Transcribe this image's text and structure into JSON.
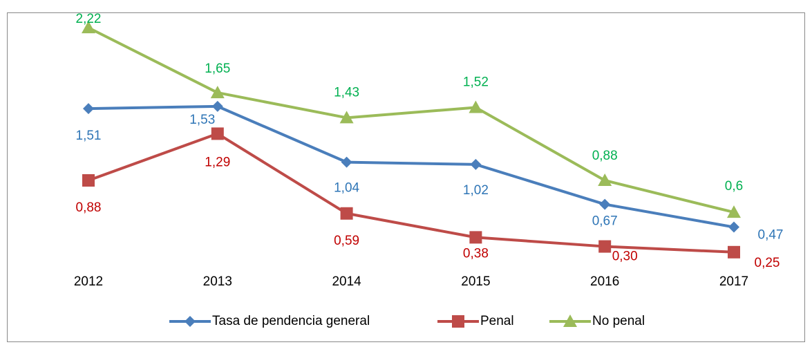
{
  "chart_data": {
    "type": "line",
    "categories": [
      "2012",
      "2013",
      "2014",
      "2015",
      "2016",
      "2017"
    ],
    "ylim": [
      0,
      2.5
    ],
    "legend": "bottom",
    "series": [
      {
        "name": "Tasa de pendencia general",
        "color": "#4a7ebb",
        "label_color": "#2e75b6",
        "marker": "diamond",
        "values": [
          1.51,
          1.53,
          1.04,
          1.02,
          0.67,
          0.47
        ],
        "value_labels": [
          "1,51",
          "1,53",
          "1,04",
          "1,02",
          "0,67",
          "0,47"
        ]
      },
      {
        "name": "Penal",
        "color": "#be4b48",
        "label_color": "#c00000",
        "marker": "square",
        "values": [
          0.88,
          1.29,
          0.59,
          0.38,
          0.3,
          0.25
        ],
        "value_labels": [
          "0,88",
          "1,29",
          "0,59",
          "0,38",
          "0,30",
          "0,25"
        ]
      },
      {
        "name": "No penal",
        "color": "#9bbb59",
        "label_color": "#00b050",
        "marker": "triangle",
        "values": [
          2.22,
          1.65,
          1.43,
          1.52,
          0.88,
          0.6
        ],
        "value_labels": [
          "2,22",
          "1,65",
          "1,43",
          "1,52",
          "0,88",
          "0,6"
        ]
      }
    ]
  }
}
